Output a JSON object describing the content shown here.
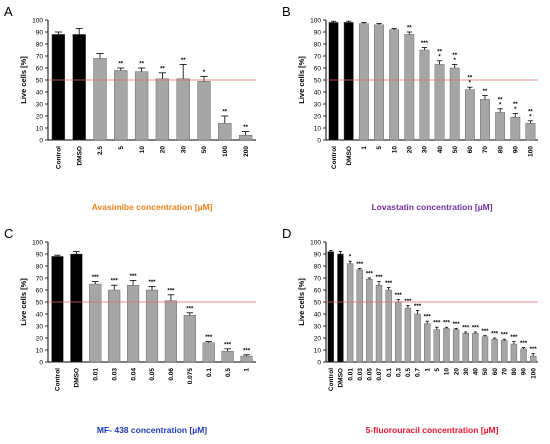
{
  "chart_data": [
    {
      "type": "bar",
      "panel": "A",
      "ylabel": "Live cells [%]",
      "xlabel": "Avasimibe concentration [µM]",
      "xlabel_color": "#f0811e",
      "ylim": [
        0,
        100
      ],
      "yticks": [
        0,
        10,
        20,
        30,
        40,
        50,
        60,
        70,
        80,
        90,
        100
      ],
      "reference_line": 50,
      "categories": [
        "Control",
        "DMSO",
        "2.5",
        "5",
        "10",
        "20",
        "30",
        "50",
        "100",
        "200"
      ],
      "values": [
        88,
        88,
        68,
        58,
        57,
        51,
        51,
        49,
        14,
        4
      ],
      "errors": [
        2,
        5,
        4,
        2,
        3,
        5,
        12,
        4,
        6,
        3
      ],
      "significance": [
        "",
        "",
        "",
        "**",
        "**",
        "**",
        "**",
        "*",
        "**",
        "**"
      ]
    },
    {
      "type": "bar",
      "panel": "B",
      "ylabel": "Live cells [%]",
      "xlabel": "Lovastatin concentration [µM]",
      "xlabel_color": "#7030a0",
      "ylim": [
        0,
        100
      ],
      "yticks": [
        0,
        10,
        20,
        30,
        40,
        50,
        60,
        70,
        80,
        90,
        100
      ],
      "reference_line": 50,
      "categories": [
        "Control",
        "DMSO",
        "1",
        "5",
        "10",
        "20",
        "30",
        "40",
        "50",
        "60",
        "70",
        "80",
        "90",
        "100"
      ],
      "values": [
        98,
        98,
        97,
        96,
        92,
        88,
        75,
        63,
        60,
        42,
        34,
        23,
        19,
        14
      ],
      "errors": [
        1,
        1,
        1,
        1,
        1,
        2,
        2,
        3,
        3,
        2,
        3,
        3,
        3,
        2
      ],
      "significance": [
        "",
        "",
        "",
        "",
        "",
        "**",
        "***",
        "**\n*",
        "**\n*",
        "**\n*",
        "**",
        "**\n*",
        "**\n*",
        "**\n*"
      ]
    },
    {
      "type": "bar",
      "panel": "C",
      "ylabel": "Live cells [%]",
      "xlabel": "MF- 438 concentration [µM]",
      "xlabel_color": "#1f3bb3",
      "ylim": [
        0,
        100
      ],
      "yticks": [
        0,
        10,
        20,
        30,
        40,
        50,
        60,
        70,
        80,
        90,
        100
      ],
      "reference_line": 50,
      "categories": [
        "Control",
        "DMSO",
        "0.01",
        "0.03",
        "0.04",
        "0.05",
        "0.06",
        "0.075",
        "0.1",
        "0.5",
        "1"
      ],
      "values": [
        88,
        90,
        65,
        60,
        64,
        60,
        51,
        39,
        16,
        9,
        5
      ],
      "errors": [
        1,
        2,
        2,
        4,
        4,
        3,
        5,
        2,
        1,
        2,
        1
      ],
      "significance": [
        "",
        "",
        "***",
        "***",
        "***",
        "***",
        "***",
        "***",
        "***",
        "***",
        "***"
      ]
    },
    {
      "type": "bar",
      "panel": "D",
      "ylabel": "Live cells [%]",
      "xlabel": "5-fluorouracil concentration [µM]",
      "xlabel_color": "#e8112d",
      "ylim": [
        0,
        100
      ],
      "yticks": [
        0,
        10,
        20,
        30,
        40,
        50,
        60,
        70,
        80,
        90,
        100
      ],
      "reference_line": 50,
      "categories": [
        "Control",
        "DMSO",
        "0.01",
        "0.03",
        "0.05",
        "0.07",
        "0.1",
        "0.3",
        "0.5",
        "0.7",
        "1",
        "5",
        "10",
        "20",
        "30",
        "40",
        "50",
        "60",
        "70",
        "80",
        "90",
        "100"
      ],
      "values": [
        92,
        90,
        82,
        77,
        69,
        64,
        60,
        50,
        45,
        40,
        32,
        27,
        28,
        27,
        24,
        24,
        21,
        19,
        18,
        15,
        11,
        5
      ],
      "errors": [
        1,
        2,
        2,
        1,
        1,
        3,
        2,
        2,
        2,
        3,
        2,
        2,
        1,
        1,
        1,
        1,
        1,
        1,
        1,
        2,
        1,
        2
      ],
      "significance": [
        "",
        "",
        "*",
        "***",
        "***",
        "***",
        "***",
        "***",
        "***",
        "***",
        "***",
        "***",
        "***",
        "***",
        "***",
        "***",
        "***",
        "***",
        "***",
        "***",
        "***",
        "***"
      ]
    }
  ],
  "style": {
    "bar_dark": "#000000",
    "bar_gray": "#a6a6a6",
    "reference_line_color": "#e06666"
  }
}
